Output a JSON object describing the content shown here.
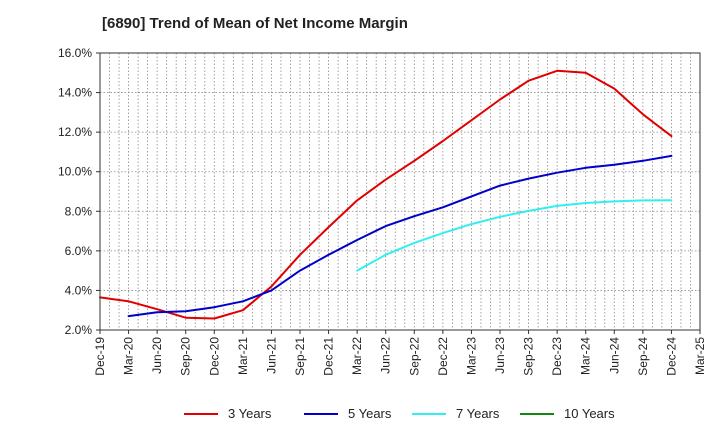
{
  "chart_data": {
    "type": "line",
    "title": "[6890]  Trend of Mean of Net Income Margin",
    "xlabel": "",
    "ylabel": "",
    "x_ticks": [
      "Dec-19",
      "Mar-20",
      "Jun-20",
      "Sep-20",
      "Dec-20",
      "Mar-21",
      "Jun-21",
      "Sep-21",
      "Dec-21",
      "Mar-22",
      "Jun-22",
      "Sep-22",
      "Dec-22",
      "Mar-23",
      "Jun-23",
      "Sep-23",
      "Dec-23",
      "Mar-24",
      "Jun-24",
      "Sep-24",
      "Dec-24",
      "Mar-25"
    ],
    "y_ticks": [
      "2.0%",
      "4.0%",
      "6.0%",
      "8.0%",
      "10.0%",
      "12.0%",
      "14.0%",
      "16.0%"
    ],
    "ylim": [
      2.0,
      16.0
    ],
    "grid": true,
    "legend_position": "bottom",
    "series": [
      {
        "name": "3 Years",
        "color": "#e00000",
        "points": [
          [
            "Dec-19",
            3.65
          ],
          [
            "Mar-20",
            3.45
          ],
          [
            "Jun-20",
            3.05
          ],
          [
            "Sep-20",
            2.62
          ],
          [
            "Dec-20",
            2.58
          ],
          [
            "Mar-21",
            3.0
          ],
          [
            "Jun-21",
            4.2
          ],
          [
            "Sep-21",
            5.8
          ],
          [
            "Dec-21",
            7.2
          ],
          [
            "Mar-22",
            8.55
          ],
          [
            "Jun-22",
            9.6
          ],
          [
            "Sep-22",
            10.55
          ],
          [
            "Dec-22",
            11.55
          ],
          [
            "Mar-23",
            12.6
          ],
          [
            "Jun-23",
            13.65
          ],
          [
            "Sep-23",
            14.6
          ],
          [
            "Dec-23",
            15.1
          ],
          [
            "Mar-24",
            15.0
          ],
          [
            "Jun-24",
            14.2
          ],
          [
            "Sep-24",
            12.9
          ],
          [
            "Dec-24",
            11.8
          ]
        ]
      },
      {
        "name": "5 Years",
        "color": "#0000c8",
        "points": [
          [
            "Mar-20",
            2.7
          ],
          [
            "Jun-20",
            2.9
          ],
          [
            "Sep-20",
            2.95
          ],
          [
            "Dec-20",
            3.15
          ],
          [
            "Mar-21",
            3.45
          ],
          [
            "Jun-21",
            4.0
          ],
          [
            "Sep-21",
            5.0
          ],
          [
            "Dec-21",
            5.8
          ],
          [
            "Mar-22",
            6.55
          ],
          [
            "Jun-22",
            7.25
          ],
          [
            "Sep-22",
            7.75
          ],
          [
            "Dec-22",
            8.2
          ],
          [
            "Mar-23",
            8.75
          ],
          [
            "Jun-23",
            9.3
          ],
          [
            "Sep-23",
            9.65
          ],
          [
            "Dec-23",
            9.95
          ],
          [
            "Mar-24",
            10.2
          ],
          [
            "Jun-24",
            10.35
          ],
          [
            "Sep-24",
            10.55
          ],
          [
            "Dec-24",
            10.8
          ]
        ]
      },
      {
        "name": "7 Years",
        "color": "#33eeee",
        "points": [
          [
            "Mar-22",
            5.0
          ],
          [
            "Jun-22",
            5.8
          ],
          [
            "Sep-22",
            6.4
          ],
          [
            "Dec-22",
            6.9
          ],
          [
            "Mar-23",
            7.35
          ],
          [
            "Jun-23",
            7.72
          ],
          [
            "Sep-23",
            8.02
          ],
          [
            "Dec-23",
            8.27
          ],
          [
            "Mar-24",
            8.42
          ],
          [
            "Jun-24",
            8.5
          ],
          [
            "Sep-24",
            8.55
          ],
          [
            "Dec-24",
            8.56
          ]
        ]
      },
      {
        "name": "10 Years",
        "color": "#118811",
        "points": []
      }
    ]
  }
}
